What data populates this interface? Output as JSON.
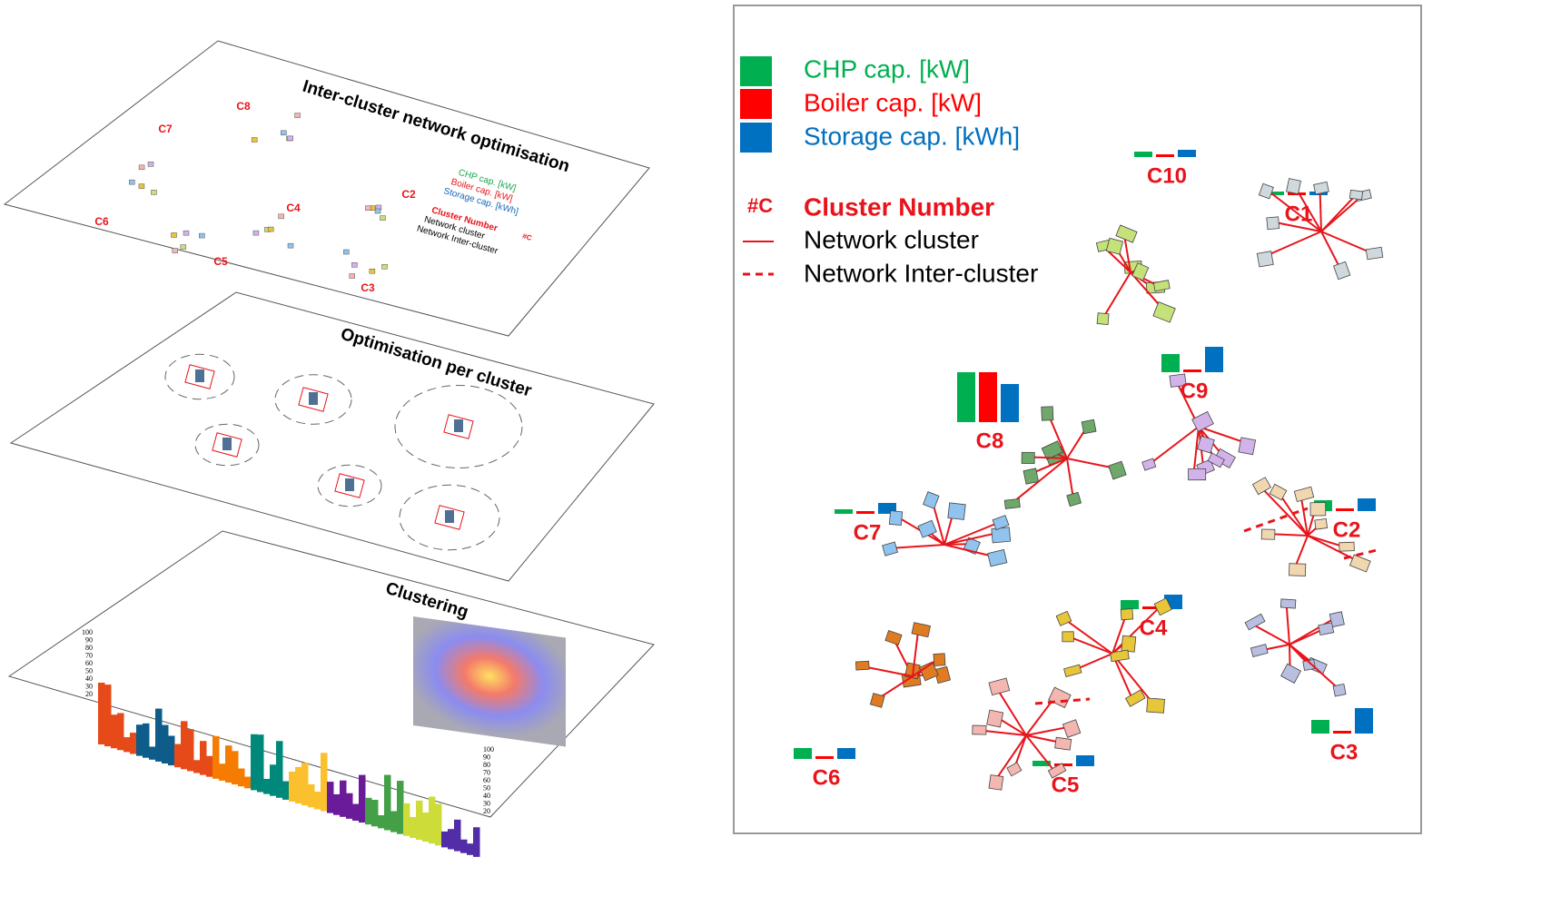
{
  "left": {
    "layers": [
      {
        "title": "Inter-cluster network optimisation",
        "labels": [
          "C8",
          "C7",
          "C2",
          "C4",
          "C6",
          "C5",
          "C3"
        ],
        "legend": [
          "CHP cap. [kW]",
          "Boiler cap. [kW]",
          "Storage cap. [kWh]",
          "Cluster Number",
          "Network cluster",
          "Network Inter-cluster"
        ],
        "legend_symbol": "#C"
      },
      {
        "title": "Optimisation per cluster"
      },
      {
        "title": "Clustering",
        "ticks_left": [
          100,
          90,
          80,
          70,
          60,
          50,
          40,
          30,
          20
        ],
        "ticks_right": [
          100,
          90,
          80,
          70,
          60,
          50,
          40,
          30,
          20
        ]
      }
    ]
  },
  "right": {
    "legend": [
      "CHP cap. [kW]",
      "Boiler cap. [kW]",
      "Storage cap. [kWh]"
    ],
    "legend_symbol": "#C",
    "legend_lines": [
      "Cluster Number",
      "Network cluster",
      "Network Inter-cluster"
    ],
    "clusters": [
      "C10",
      "C1",
      "C9",
      "C8",
      "C7",
      "C2",
      "C4",
      "C6",
      "C5",
      "C3"
    ]
  }
}
